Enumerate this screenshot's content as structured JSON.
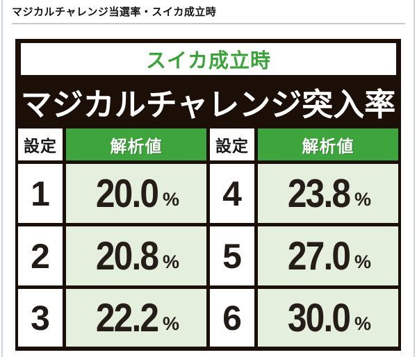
{
  "page": {
    "heading": "マジカルチャレンジ当選率・スイカ成立時"
  },
  "panel": {
    "subtitle": "スイカ成立時",
    "title": "マジカルチャレンジ突入率"
  },
  "table": {
    "header": {
      "setting": "設定",
      "value": "解析値"
    },
    "unit": "%",
    "rows": [
      {
        "s1": "1",
        "v1": "20.0",
        "s2": "4",
        "v2": "23.8"
      },
      {
        "s1": "2",
        "v1": "20.8",
        "s2": "5",
        "v2": "27.0"
      },
      {
        "s1": "3",
        "v1": "22.2",
        "s2": "6",
        "v2": "30.0"
      }
    ]
  },
  "colors": {
    "accent_green": "#3ea43c",
    "cell_light_green": "#e5efde",
    "panel_black": "#1c0f08",
    "edge_blue": "#c9d3e2",
    "divider_gray": "#c6c9cd"
  },
  "chart_data": {
    "type": "table",
    "title": "スイカ成立時 マジカルチャレンジ突入率",
    "columns": [
      "設定",
      "解析値",
      "設定",
      "解析値"
    ],
    "rows": [
      [
        "1",
        "20.0%",
        "4",
        "23.8%"
      ],
      [
        "2",
        "20.8%",
        "5",
        "27.0%"
      ],
      [
        "3",
        "22.2%",
        "6",
        "30.0%"
      ]
    ]
  }
}
